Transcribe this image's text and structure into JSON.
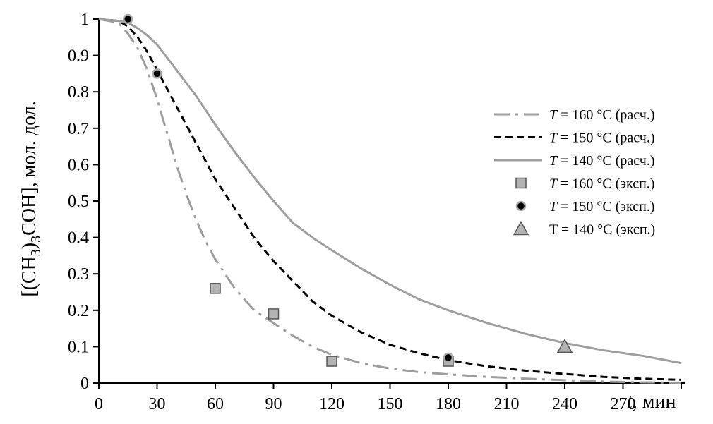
{
  "chart_data": {
    "type": "line",
    "xlabel": {
      "italic": "t",
      "rest": ", мин"
    },
    "ylabel": {
      "pre": "[(CH",
      "sub": "3",
      "mid": ")",
      "sub2": "3",
      "post": "COH], мол. дол."
    },
    "xlim": [
      0,
      300
    ],
    "ylim": [
      0,
      1
    ],
    "xticks": [
      "0",
      "30",
      "60",
      "90",
      "120",
      "150",
      "180",
      "210",
      "240",
      "270"
    ],
    "yticks": [
      "0",
      "0.1",
      "0.2",
      "0.3",
      "0.4",
      "0.5",
      "0.6",
      "0.7",
      "0.8",
      "0.9",
      "1"
    ],
    "grid": false,
    "legend_position": "right",
    "series": [
      {
        "name": "T = 160 °C (расч.)",
        "name_italic": "T",
        "name_rest": " = 160 °C (расч.)",
        "kind": "line",
        "style": "dashdot",
        "color": "#9e9e9e",
        "x": [
          0,
          10,
          15,
          20,
          25,
          30,
          35,
          40,
          45,
          50,
          55,
          60,
          65,
          70,
          80,
          90,
          100,
          110,
          120,
          135,
          150,
          165,
          180,
          200,
          220,
          240,
          260,
          280,
          300
        ],
        "y": [
          1,
          0.99,
          0.96,
          0.92,
          0.86,
          0.78,
          0.69,
          0.6,
          0.52,
          0.45,
          0.39,
          0.34,
          0.3,
          0.26,
          0.2,
          0.165,
          0.13,
          0.1,
          0.078,
          0.055,
          0.04,
          0.03,
          0.024,
          0.017,
          0.012,
          0.008,
          0.004,
          0.002,
          0.001
        ]
      },
      {
        "name": "T = 150 °C (расч.)",
        "name_italic": "T",
        "name_rest": " = 150 °C (расч.)",
        "kind": "line",
        "style": "dashed",
        "color": "#000000",
        "x": [
          0,
          10,
          15,
          20,
          25,
          30,
          40,
          50,
          60,
          70,
          80,
          90,
          100,
          110,
          120,
          135,
          150,
          165,
          180,
          200,
          220,
          240,
          260,
          280,
          300
        ],
        "y": [
          1,
          0.995,
          0.98,
          0.95,
          0.91,
          0.86,
          0.76,
          0.66,
          0.56,
          0.48,
          0.4,
          0.335,
          0.28,
          0.225,
          0.185,
          0.14,
          0.105,
          0.082,
          0.063,
          0.046,
          0.034,
          0.025,
          0.017,
          0.012,
          0.009
        ]
      },
      {
        "name": "T = 140 °C (расч.)",
        "name_italic": "T",
        "name_rest": " = 140 °C (расч.)",
        "kind": "line",
        "style": "solid",
        "color": "#9e9e9e",
        "x": [
          0,
          10,
          15,
          20,
          25,
          30,
          40,
          50,
          60,
          70,
          80,
          90,
          100,
          110,
          120,
          135,
          150,
          165,
          180,
          200,
          220,
          240,
          260,
          280,
          300
        ],
        "y": [
          1,
          0.995,
          0.99,
          0.975,
          0.955,
          0.93,
          0.86,
          0.79,
          0.71,
          0.635,
          0.565,
          0.5,
          0.44,
          0.4,
          0.365,
          0.315,
          0.27,
          0.23,
          0.2,
          0.165,
          0.135,
          0.11,
          0.09,
          0.075,
          0.055
        ]
      },
      {
        "name": "T = 160 °C (эксп.)",
        "name_italic": "T",
        "name_rest": " = 160 °C (эксп.)",
        "kind": "scatter",
        "marker": "square",
        "color": "#b3b3b3",
        "x": [
          60,
          90,
          120,
          180
        ],
        "y": [
          0.26,
          0.19,
          0.06,
          0.06
        ]
      },
      {
        "name": "T = 150 °C (эксп.)",
        "name_italic": "T",
        "name_rest": " = 150 °C (эксп.)",
        "kind": "scatter",
        "marker": "circle",
        "color": "#000000",
        "x": [
          15,
          30,
          180
        ],
        "y": [
          1.0,
          0.85,
          0.07
        ]
      },
      {
        "name": "T = 140 °C (эксп.)",
        "name_italic": "",
        "name_rest": "T = 140 °C (эксп.)",
        "kind": "scatter",
        "marker": "triangle",
        "color": "#b3b3b3",
        "x": [
          240
        ],
        "y": [
          0.1
        ]
      }
    ]
  }
}
